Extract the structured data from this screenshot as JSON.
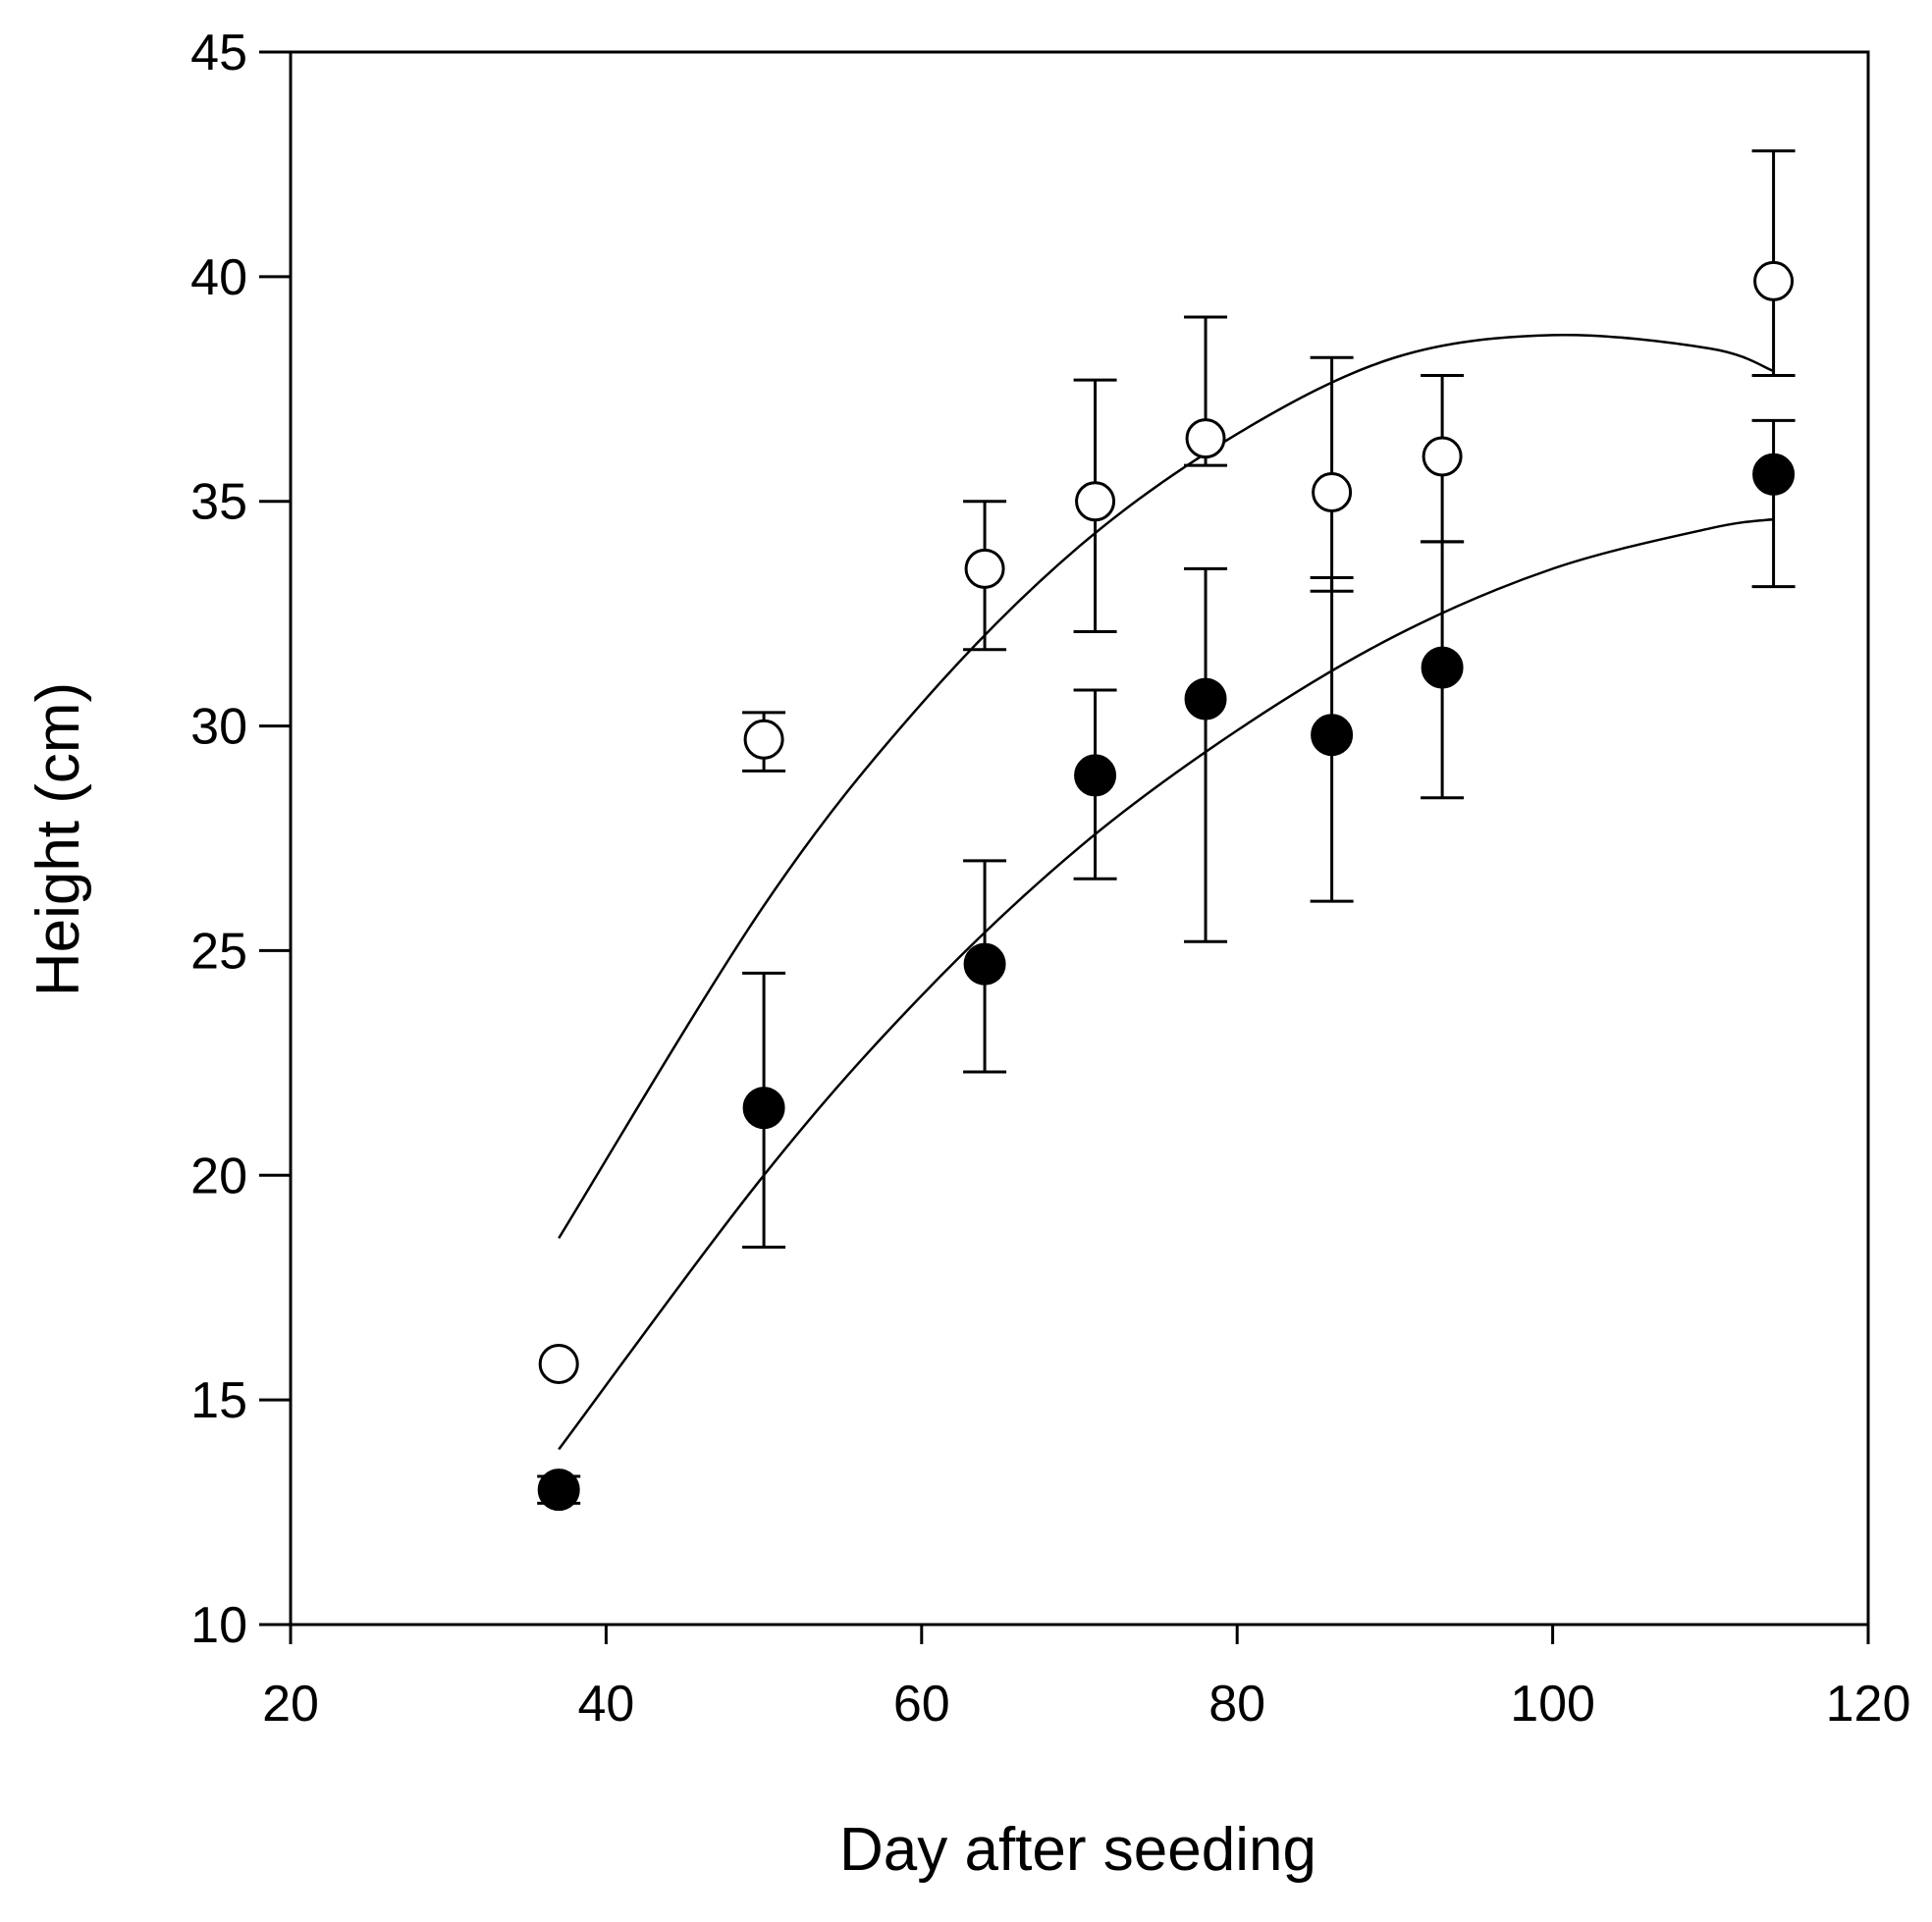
{
  "chart_data": {
    "type": "scatter",
    "title": "",
    "xlabel": "Day after seeding",
    "ylabel": "Height (cm)",
    "xlim": [
      20,
      120
    ],
    "ylim": [
      10,
      45
    ],
    "xticks": [
      20,
      40,
      60,
      80,
      100,
      120
    ],
    "yticks": [
      10,
      15,
      20,
      25,
      30,
      35,
      40,
      45
    ],
    "xtick_labels": [
      "20",
      "40",
      "60",
      "80",
      "100",
      "120"
    ],
    "ytick_labels": [
      "10",
      "15",
      "20",
      "25",
      "30",
      "35",
      "40",
      "45"
    ],
    "grid": false,
    "legend": null,
    "series": [
      {
        "name": "open circles",
        "marker": "open-circle",
        "x": [
          37,
          50,
          64,
          71,
          78,
          86,
          93,
          114
        ],
        "y": [
          15.8,
          29.7,
          33.5,
          35.0,
          36.4,
          35.2,
          36.0,
          39.9
        ],
        "err_low": [
          0.0,
          0.7,
          1.8,
          2.9,
          0.6,
          2.2,
          1.9,
          2.1
        ],
        "err_high": [
          0.0,
          0.6,
          1.5,
          2.7,
          2.7,
          3.0,
          1.8,
          2.9
        ],
        "fit": {
          "x_start": 37,
          "x_end": 114,
          "points": [
            [
              37,
              18.6
            ],
            [
              50,
              26.0
            ],
            [
              60,
              30.5
            ],
            [
              70,
              34.0
            ],
            [
              80,
              36.5
            ],
            [
              90,
              38.2
            ],
            [
              100,
              38.7
            ],
            [
              110,
              38.4
            ],
            [
              114,
              37.9
            ]
          ]
        }
      },
      {
        "name": "filled circles",
        "marker": "filled-circle",
        "x": [
          37,
          50,
          64,
          71,
          78,
          86,
          93,
          114
        ],
        "y": [
          13.0,
          21.5,
          24.7,
          28.9,
          30.6,
          29.8,
          31.3,
          35.6
        ],
        "err_low": [
          0.3,
          3.1,
          2.4,
          2.3,
          5.4,
          3.7,
          2.9,
          2.5
        ],
        "err_high": [
          0.3,
          3.0,
          2.3,
          1.9,
          2.9,
          3.5,
          2.8,
          1.2
        ],
        "fit": {
          "x_start": 37,
          "x_end": 114,
          "points": [
            [
              37,
              13.9
            ],
            [
              50,
              20.0
            ],
            [
              60,
              24.0
            ],
            [
              70,
              27.3
            ],
            [
              80,
              29.9
            ],
            [
              90,
              32.0
            ],
            [
              100,
              33.5
            ],
            [
              110,
              34.4
            ],
            [
              114,
              34.6
            ]
          ]
        }
      }
    ]
  }
}
